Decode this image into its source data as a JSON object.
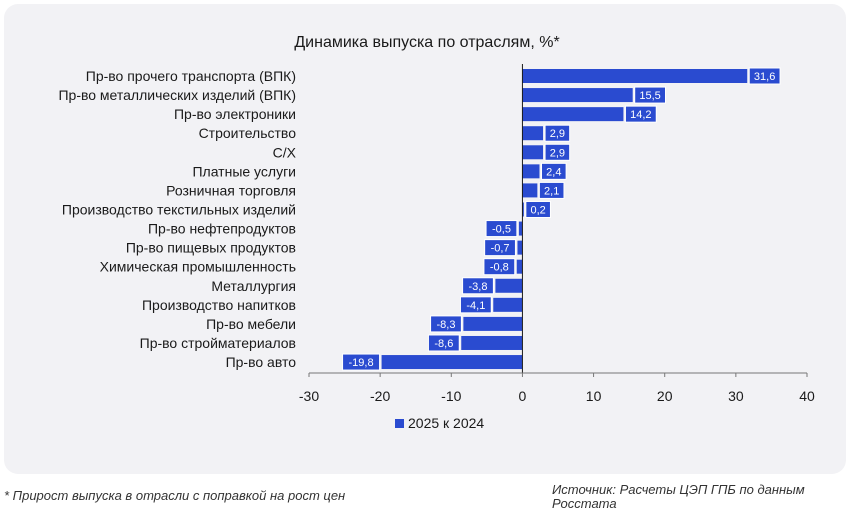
{
  "chart_data": {
    "type": "bar",
    "orientation": "horizontal",
    "title": "Динамика выпуска по отраслям, %*",
    "categories": [
      "Пр-во прочего транспорта (ВПК)",
      "Пр-во металлических изделий (ВПК)",
      "Пр-во электроники",
      "Строительство",
      "С/Х",
      "Платные услуги",
      "Розничная торговля",
      "Производство текстильных изделий",
      "Пр-во нефтепродуктов",
      "Пр-во пищевых продуктов",
      "Химическая промышленность",
      "Металлургия",
      "Производство напитков",
      "Пр-во мебели",
      "Пр-во стройматериалов",
      "Пр-во авто"
    ],
    "series": [
      {
        "name": "2025 к 2024",
        "values": [
          31.6,
          15.5,
          14.2,
          2.9,
          2.9,
          2.4,
          2.1,
          0.2,
          -0.5,
          -0.7,
          -0.8,
          -3.8,
          -4.1,
          -8.3,
          -8.6,
          -19.8
        ],
        "labels": [
          "31,6",
          "15,5",
          "14,2",
          "2,9",
          "2,9",
          "2,4",
          "2,1",
          "0,2",
          "-0,5",
          "-0,7",
          "-0,8",
          "-3,8",
          "-4,1",
          "-8,3",
          "-8,6",
          "-19,8"
        ]
      }
    ],
    "xlim": [
      -30,
      40
    ],
    "xticks": [
      -30,
      -20,
      -10,
      0,
      10,
      20,
      30,
      40
    ],
    "xtick_labels": [
      "-30",
      "-20",
      "-10",
      "0",
      "10",
      "20",
      "30",
      "40"
    ],
    "legend_position": "bottom-center",
    "grid": false,
    "colors": {
      "bar": "#2a4bd0",
      "text": "#1a1a1a",
      "axis": "#1a1a1a",
      "card_bg": "#f2f2f5"
    }
  },
  "footnote": "* Прирост выпуска в отрасли с поправкой на рост цен",
  "source": "Источник: Расчеты ЦЭП ГПБ по данным Росстата"
}
